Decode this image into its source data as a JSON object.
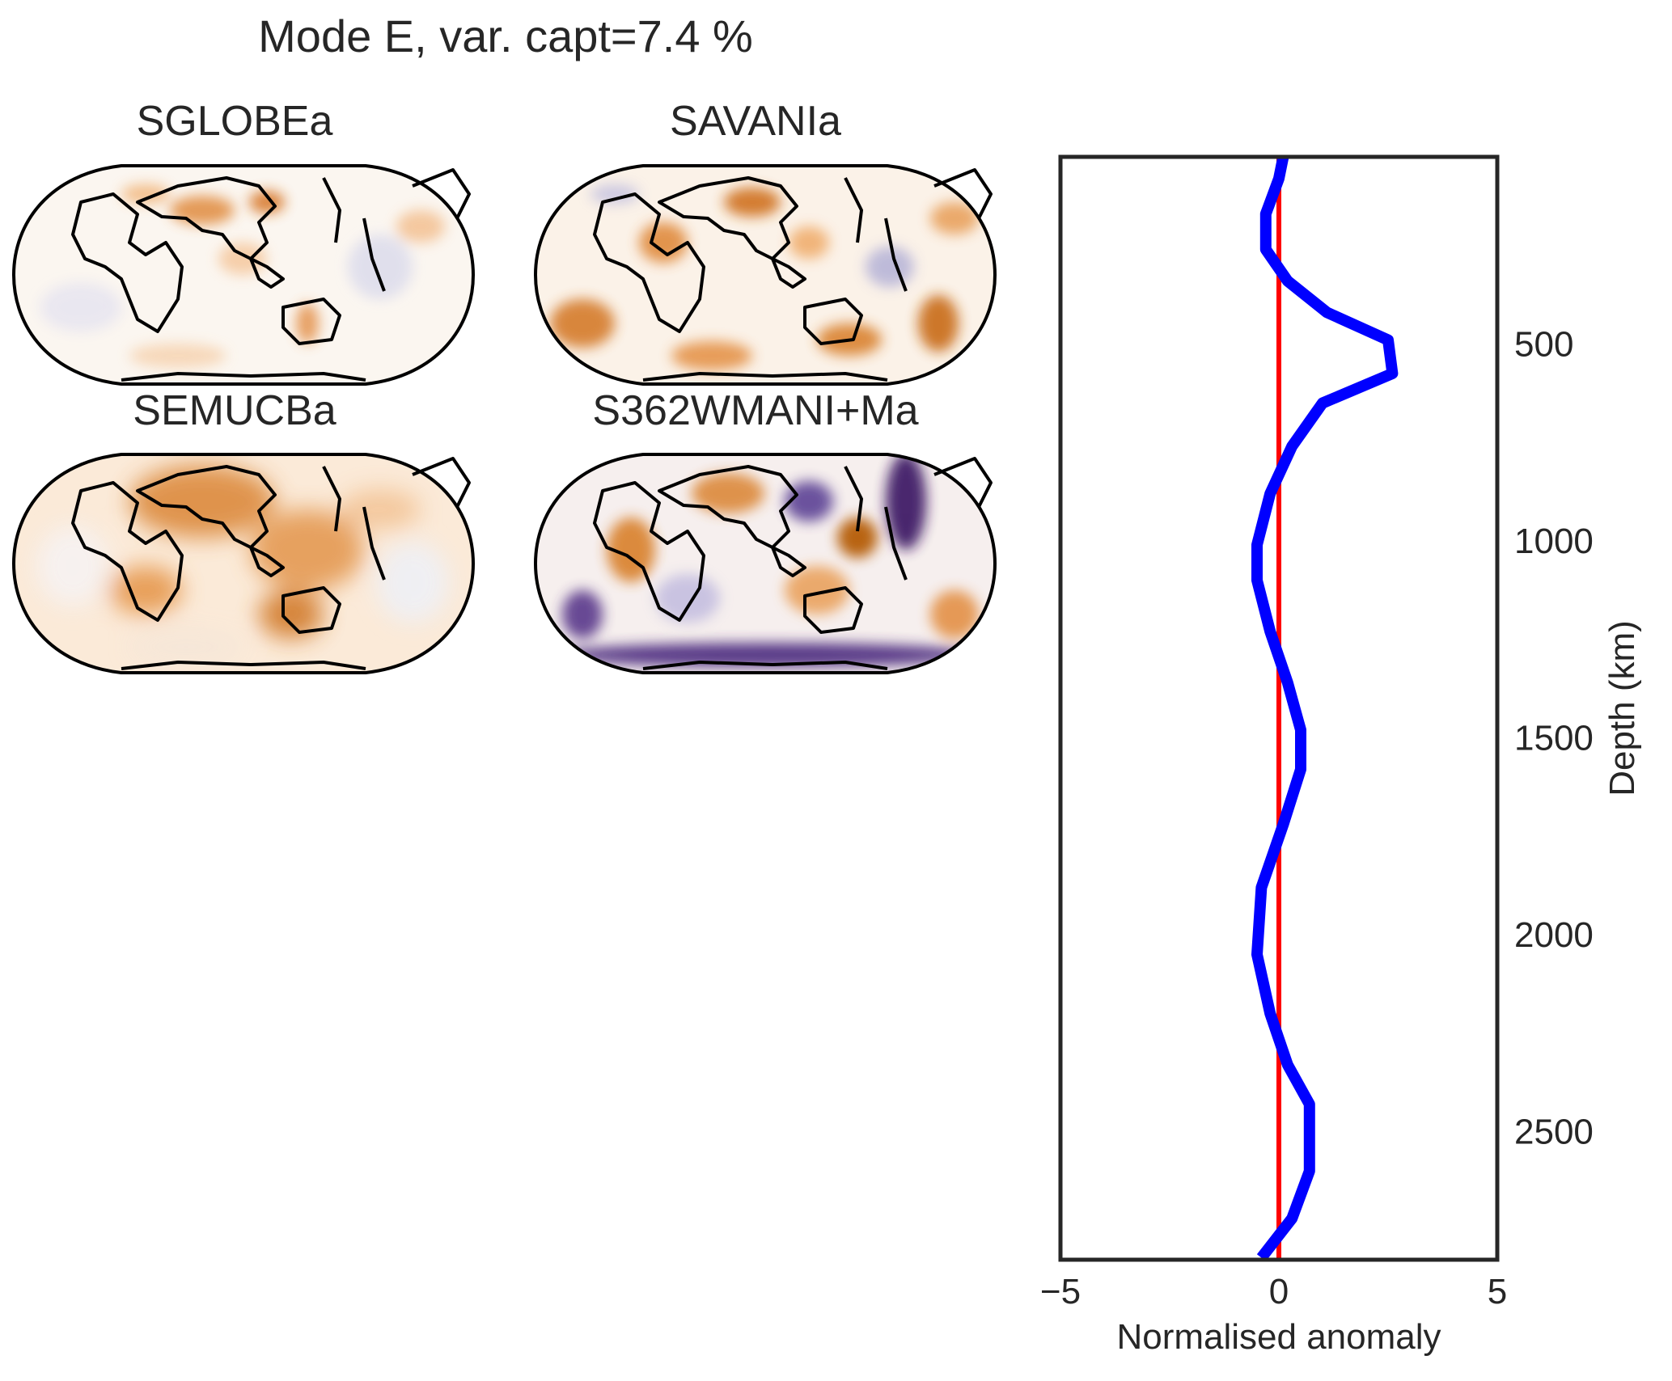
{
  "figure": {
    "title": "Mode E, var. capt=7.4 %"
  },
  "maps": [
    {
      "title": "SGLOBEa"
    },
    {
      "title": "SAVANIa"
    },
    {
      "title": "SEMUCBa"
    },
    {
      "title": "S362WMANI+Ma"
    }
  ],
  "colors": {
    "profile": "#0000ff",
    "zero_line": "#ff0000",
    "axes_frame": "#262626",
    "map_positive": "#b35806",
    "map_negative": "#2d004b"
  },
  "chart_data": {
    "type": "line",
    "title": "",
    "xlabel": "Normalised anomaly",
    "ylabel": "Depth (km)",
    "xlim": [
      -5,
      5
    ],
    "ylim": [
      2825,
      25
    ],
    "y_inverted": true,
    "yaxis_side": "right",
    "x_ticks": [
      -5,
      0,
      5
    ],
    "x_tick_labels": [
      "−5",
      "0",
      "5"
    ],
    "y_ticks": [
      500,
      1000,
      1500,
      2000,
      2500
    ],
    "y_tick_labels": [
      "500",
      "1000",
      "1500",
      "2000",
      "2500"
    ],
    "grid": false,
    "series": [
      {
        "x": [
          0.1,
          0.0,
          -0.3,
          -0.3,
          0.2,
          1.1,
          2.5,
          2.6,
          1.0,
          0.3,
          -0.2,
          -0.5,
          -0.5,
          -0.2,
          0.2,
          0.5,
          0.5,
          0.1,
          -0.4,
          -0.5,
          -0.2,
          0.2,
          0.7,
          0.7,
          0.3,
          -0.4
        ],
        "y": [
          25,
          80,
          170,
          260,
          340,
          420,
          490,
          575,
          650,
          760,
          880,
          1010,
          1100,
          1230,
          1360,
          1480,
          1580,
          1720,
          1880,
          2050,
          2200,
          2330,
          2430,
          2600,
          2720,
          2820
        ]
      },
      {
        "x": [
          0,
          0
        ],
        "y": [
          25,
          2825
        ]
      }
    ]
  }
}
